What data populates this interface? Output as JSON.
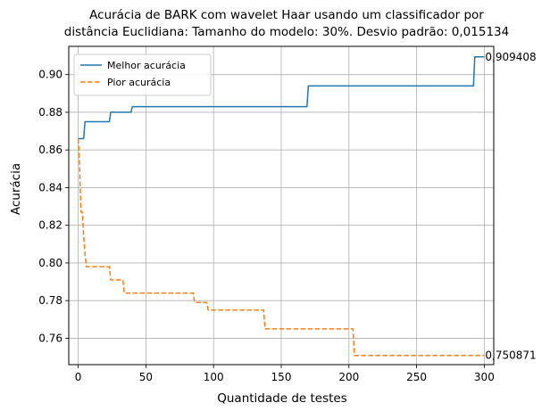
{
  "chart_data": {
    "type": "line",
    "title_line1": "Acurácia de BARK com wavelet Haar usando um classificador por",
    "title_line2": "distância Euclidiana: Tamanho do modelo: 30%. Desvio padrão: 0,015134",
    "xlabel": "Quantidade de testes",
    "ylabel": "Acurácia",
    "xlim": [
      -7,
      307
    ],
    "ylim": [
      0.746,
      0.915
    ],
    "xticks": [
      0,
      50,
      100,
      150,
      200,
      250,
      300
    ],
    "xtick_labels": [
      "0",
      "50",
      "100",
      "150",
      "200",
      "250",
      "300"
    ],
    "yticks": [
      0.76,
      0.78,
      0.8,
      0.82,
      0.84,
      0.86,
      0.88,
      0.9
    ],
    "ytick_labels": [
      "0.76",
      "0.78",
      "0.80",
      "0.82",
      "0.84",
      "0.86",
      "0.88",
      "0.90"
    ],
    "grid": true,
    "legend_position": "top-left",
    "series": [
      {
        "name": "Melhor acurácia",
        "color": "#1f77b4",
        "style": "solid",
        "x": [
          0,
          1,
          4,
          5,
          23,
          24,
          39,
          40,
          169,
          170,
          292,
          293,
          300
        ],
        "y": [
          0.866,
          0.866,
          0.866,
          0.875,
          0.875,
          0.88,
          0.88,
          0.883,
          0.883,
          0.894,
          0.894,
          0.909408,
          0.909408
        ]
      },
      {
        "name": "Pior acurácia",
        "color": "#ff7f0e",
        "style": "dashed",
        "x": [
          0,
          1,
          2,
          3,
          4,
          5,
          6,
          7,
          23,
          24,
          33,
          34,
          85,
          86,
          95,
          96,
          137,
          138,
          203,
          204,
          300
        ],
        "y": [
          0.866,
          0.852,
          0.827,
          0.827,
          0.814,
          0.805,
          0.798,
          0.798,
          0.798,
          0.791,
          0.791,
          0.784,
          0.784,
          0.779,
          0.779,
          0.775,
          0.775,
          0.765,
          0.765,
          0.750871,
          0.750871
        ]
      }
    ],
    "annotations": [
      {
        "text": "0,909408",
        "x": 300,
        "y": 0.909408
      },
      {
        "text": "0,750871",
        "x": 300,
        "y": 0.750871
      }
    ]
  }
}
